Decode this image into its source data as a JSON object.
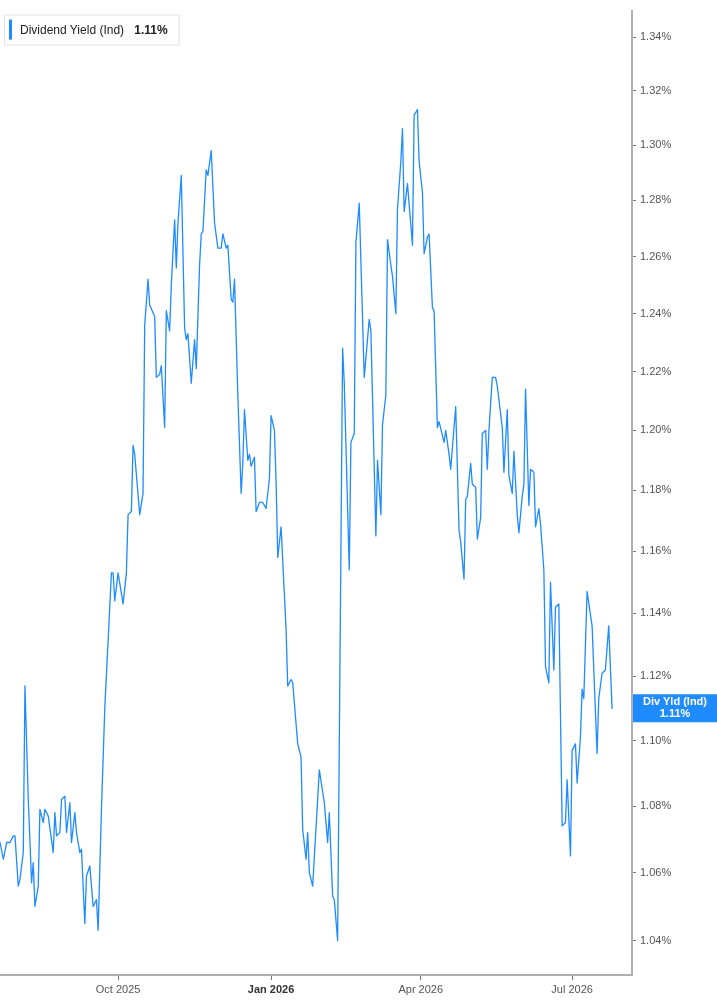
{
  "chart_data": {
    "type": "line",
    "log": true,
    "legend": "top left",
    "marker": "none",
    "line_style": "solid",
    "xlim": [
      "2025-07-22",
      "2026-08-06"
    ],
    "xticks": [
      {
        "value": "2025-10-01",
        "label": "Oct 2025"
      },
      {
        "value": "2026-01-01",
        "label": "Jan 2026"
      },
      {
        "value": "2026-04-01",
        "label": "Apr 2026"
      },
      {
        "value": "2026-07-01",
        "label": "Jul 2026"
      }
    ],
    "ylim": [
      1.03,
      1.35
    ],
    "yticks": [
      {
        "value": 1.04,
        "label": "1.04%"
      },
      {
        "value": 1.06,
        "label": "1.06%"
      },
      {
        "value": 1.08,
        "label": "1.08%"
      },
      {
        "value": 1.1,
        "label": "1.10%"
      },
      {
        "value": 1.12,
        "label": "1.12%"
      },
      {
        "value": 1.14,
        "label": "1.14%"
      },
      {
        "value": 1.16,
        "label": "1.16%"
      },
      {
        "value": 1.18,
        "label": "1.18%"
      },
      {
        "value": 1.2,
        "label": "1.20%"
      },
      {
        "value": 1.22,
        "label": "1.22%"
      },
      {
        "value": 1.24,
        "label": "1.24%"
      },
      {
        "value": 1.26,
        "label": "1.26%"
      },
      {
        "value": 1.28,
        "label": "1.28%"
      },
      {
        "value": 1.3,
        "label": "1.30%"
      },
      {
        "value": 1.32,
        "label": "1.32%"
      },
      {
        "value": 1.34,
        "label": "1.34%"
      }
    ],
    "annotations": [
      "1.11%",
      "Div Yld (Ind)\n1.11%"
    ],
    "x": [
      "2025-07-22",
      "2025-07-24",
      "2025-07-26",
      "2025-07-28",
      "2025-07-30",
      "2025-07-31",
      "2025-08-02",
      "2025-08-03",
      "2025-08-05",
      "2025-08-06",
      "2025-08-08",
      "2025-08-10",
      "2025-08-11",
      "2025-08-12",
      "2025-08-14",
      "2025-08-15",
      "2025-08-17",
      "2025-08-18",
      "2025-08-20",
      "2025-08-23",
      "2025-08-24",
      "2025-08-25",
      "2025-08-27",
      "2025-08-28",
      "2025-08-30",
      "2025-08-31",
      "2025-09-02",
      "2025-09-03",
      "2025-09-05",
      "2025-09-06",
      "2025-09-08",
      "2025-09-09",
      "2025-09-11",
      "2025-09-12",
      "2025-09-14",
      "2025-09-16",
      "2025-09-18",
      "2025-09-19",
      "2025-09-21",
      "2025-09-23",
      "2025-09-27",
      "2025-09-28",
      "2025-09-29",
      "2025-10-01",
      "2025-10-04",
      "2025-10-06",
      "2025-10-07",
      "2025-10-09",
      "2025-10-10",
      "2025-10-11",
      "2025-10-14",
      "2025-10-16",
      "2025-10-17",
      "2025-10-19",
      "2025-10-20",
      "2025-10-23",
      "2025-10-24",
      "2025-10-26",
      "2025-10-27",
      "2025-10-29",
      "2025-10-30",
      "2025-11-01",
      "2025-11-02",
      "2025-11-04",
      "2025-11-05",
      "2025-11-06",
      "2025-11-08",
      "2025-11-10",
      "2025-11-11",
      "2025-11-12",
      "2025-11-14",
      "2025-11-16",
      "2025-11-17",
      "2025-11-19",
      "2025-11-20",
      "2025-11-21",
      "2025-11-23",
      "2025-11-24",
      "2025-11-26",
      "2025-11-28",
      "2025-11-30",
      "2025-12-02",
      "2025-12-03",
      "2025-12-05",
      "2025-12-06",
      "2025-12-08",
      "2025-12-09",
      "2025-12-10",
      "2025-12-12",
      "2025-12-14",
      "2025-12-15",
      "2025-12-16",
      "2025-12-18",
      "2025-12-19",
      "2025-12-20",
      "2025-12-22",
      "2025-12-23",
      "2025-12-25",
      "2025-12-27",
      "2025-12-29",
      "2025-12-31",
      "2026-01-01",
      "2026-01-03",
      "2026-01-04",
      "2026-01-05",
      "2026-01-07",
      "2026-01-10",
      "2026-01-11",
      "2026-01-13",
      "2026-01-14",
      "2026-01-17",
      "2026-01-19",
      "2026-01-20",
      "2026-01-22",
      "2026-01-23",
      "2026-01-24",
      "2026-01-26",
      "2026-01-30",
      "2026-02-02",
      "2026-02-04",
      "2026-02-05",
      "2026-02-07",
      "2026-02-08",
      "2026-02-10",
      "2026-02-13",
      "2026-02-14",
      "2026-02-17",
      "2026-02-18",
      "2026-02-20",
      "2026-02-21",
      "2026-02-23",
      "2026-02-26",
      "2026-03-01",
      "2026-03-02",
      "2026-03-05",
      "2026-03-06",
      "2026-03-08",
      "2026-03-09",
      "2026-03-11",
      "2026-03-12",
      "2026-03-14",
      "2026-03-15",
      "2026-03-17",
      "2026-03-18",
      "2026-03-20",
      "2026-03-21",
      "2026-03-22",
      "2026-03-24",
      "2026-03-27",
      "2026-03-28",
      "2026-03-30",
      "2026-03-31",
      "2026-04-02",
      "2026-04-03",
      "2026-04-05",
      "2026-04-06",
      "2026-04-08",
      "2026-04-09",
      "2026-04-11",
      "2026-04-12",
      "2026-04-15",
      "2026-04-16",
      "2026-04-18",
      "2026-04-19",
      "2026-04-22",
      "2026-04-24",
      "2026-04-25",
      "2026-04-27",
      "2026-04-28",
      "2026-04-29",
      "2026-05-01",
      "2026-05-02",
      "2026-05-04",
      "2026-05-05",
      "2026-05-07",
      "2026-05-08",
      "2026-05-10",
      "2026-05-11",
      "2026-05-12",
      "2026-05-14",
      "2026-05-16",
      "2026-05-17",
      "2026-05-20",
      "2026-05-21",
      "2026-05-23",
      "2026-05-24",
      "2026-05-26",
      "2026-05-27",
      "2026-05-29",
      "2026-05-30",
      "2026-06-01",
      "2026-06-02",
      "2026-06-03",
      "2026-06-05",
      "2026-06-06",
      "2026-06-08",
      "2026-06-09",
      "2026-06-11",
      "2026-06-12",
      "2026-06-14",
      "2026-06-15",
      "2026-06-17",
      "2026-06-18",
      "2026-06-20",
      "2026-06-21",
      "2026-06-23",
      "2026-06-25",
      "2026-06-27",
      "2026-06-28",
      "2026-06-30",
      "2026-07-01",
      "2026-07-03",
      "2026-07-04",
      "2026-07-06",
      "2026-07-07",
      "2026-07-08",
      "2026-07-10",
      "2026-07-13",
      "2026-07-16",
      "2026-07-17",
      "2026-07-19",
      "2026-07-21",
      "2026-07-23",
      "2026-07-25"
    ],
    "series": [
      {
        "name": "Dividend Yield (Ind)",
        "color": "#1e8bff",
        "values": [
          1.069,
          1.064,
          1.069,
          1.069,
          1.071,
          1.071,
          1.056,
          1.058,
          1.066,
          1.117,
          1.082,
          1.057,
          1.063,
          1.05,
          1.056,
          1.079,
          1.075,
          1.079,
          1.077,
          1.066,
          1.078,
          1.071,
          1.072,
          1.082,
          1.083,
          1.072,
          1.081,
          1.069,
          1.078,
          1.072,
          1.066,
          1.067,
          1.045,
          1.059,
          1.062,
          1.05,
          1.052,
          1.043,
          1.079,
          1.11,
          1.153,
          1.153,
          1.144,
          1.153,
          1.143,
          1.153,
          1.172,
          1.173,
          1.195,
          1.192,
          1.172,
          1.179,
          1.236,
          1.252,
          1.243,
          1.239,
          1.218,
          1.219,
          1.222,
          1.201,
          1.241,
          1.234,
          1.25,
          1.273,
          1.256,
          1.272,
          1.289,
          1.235,
          1.231,
          1.233,
          1.216,
          1.231,
          1.221,
          1.257,
          1.268,
          1.269,
          1.291,
          1.289,
          1.298,
          1.272,
          1.263,
          1.263,
          1.268,
          1.263,
          1.264,
          1.245,
          1.244,
          1.252,
          1.212,
          1.179,
          1.189,
          1.207,
          1.19,
          1.192,
          1.188,
          1.191,
          1.173,
          1.176,
          1.176,
          1.174,
          1.184,
          1.205,
          1.2,
          1.183,
          1.158,
          1.168,
          1.135,
          1.117,
          1.119,
          1.118,
          1.099,
          1.095,
          1.073,
          1.064,
          1.072,
          1.06,
          1.056,
          1.091,
          1.081,
          1.069,
          1.078,
          1.053,
          1.052,
          1.04,
          1.228,
          1.216,
          1.154,
          1.196,
          1.199,
          1.265,
          1.279,
          1.218,
          1.238,
          1.234,
          1.165,
          1.19,
          1.172,
          1.202,
          1.212,
          1.266,
          1.257,
          1.253,
          1.24,
          1.277,
          1.294,
          1.306,
          1.276,
          1.286,
          1.264,
          1.311,
          1.313,
          1.294,
          1.283,
          1.261,
          1.267,
          1.268,
          1.242,
          1.241,
          1.201,
          1.203,
          1.196,
          1.2,
          1.192,
          1.187,
          1.208,
          1.167,
          1.163,
          1.151,
          1.177,
          1.178,
          1.189,
          1.182,
          1.181,
          1.164,
          1.171,
          1.199,
          1.2,
          1.187,
          1.2,
          1.218,
          1.218,
          1.215,
          1.201,
          1.186,
          1.207,
          1.185,
          1.179,
          1.193,
          1.172,
          1.166,
          1.178,
          1.182,
          1.214,
          1.175,
          1.187,
          1.186,
          1.168,
          1.174,
          1.169,
          1.154,
          1.123,
          1.118,
          1.15,
          1.122,
          1.142,
          1.143,
          1.074,
          1.075,
          1.088,
          1.065,
          1.097,
          1.099,
          1.087,
          1.101,
          1.116,
          1.113,
          1.147,
          1.136,
          1.096,
          1.113,
          1.121,
          1.122,
          1.136,
          1.11
        ]
      }
    ]
  }
}
